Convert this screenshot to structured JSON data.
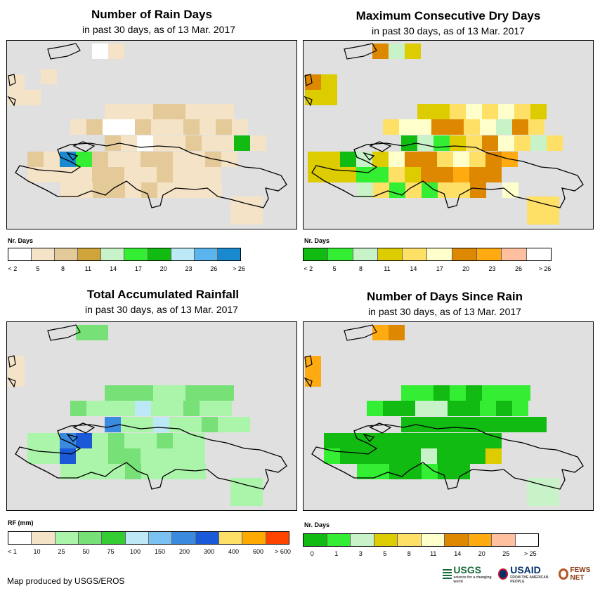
{
  "panels": [
    {
      "id": "rain-days",
      "title": "Number of Rain Days",
      "subtitle": "in past 30 days, as of 13 Mar. 2017",
      "legend_title": "Nr. Days",
      "legend_colors": [
        "#ffffff",
        "#f5e3c8",
        "#e4c999",
        "#cfa43a",
        "#c8f2c8",
        "#33ee33",
        "#11bb11",
        "#bde8f5",
        "#5ab4ee",
        "#1a8ad0"
      ],
      "legend_ticks": [
        "< 2",
        "5",
        "8",
        "11",
        "14",
        "17",
        "20",
        "23",
        "26",
        "> 26"
      ],
      "grid": [
        "...AB......",
        "..B........",
        "B..........",
        "BB.........",
        "...BBBCCBBB",
        "..BCWWCBBCBCB",
        "...CBWBBCBBGB",
        ".CKJFCBBCCBBCB",
        ".BBBBCCBBCBBB",
        "..BBCCBCBBBB",
        "......BB....",
        "......BB...."
      ]
    },
    {
      "id": "dry-days",
      "title": "Maximum Consecutive Dry Days",
      "subtitle": "in past 30 days, as of 13 Mar. 2017",
      "legend_title": "Nr. Days",
      "legend_colors": [
        "#11bb11",
        "#33ee33",
        "#c8f2c8",
        "#ddcc00",
        "#ffe066",
        "#ffffcc",
        "#dd8800",
        "#ffaa11",
        "#ffc0a0",
        "#ffffff"
      ],
      "legend_ticks": [
        "< 2",
        "5",
        "8",
        "11",
        "14",
        "17",
        "20",
        "23",
        "26",
        "> 26"
      ],
      "grid": [
        "..GCD......",
        "...........",
        "GD.........",
        "DD.........",
        "....DDEFEFED",
        "...EFFGGEFCGE",
        "...ACBDEGFECE",
        "DDACDFGGEFEGH",
        "DDDBBEDGGHGG",
        "..CEBEBEEG.F",
        "......EE....",
        "......EE...."
      ]
    },
    {
      "id": "rainfall",
      "title": "Total Accumulated Rainfall",
      "subtitle": "in past 30 days, as of 13 Mar. 2017",
      "legend_title": "RF (mm)",
      "legend_colors": [
        "#ffffff",
        "#f5e3c8",
        "#aaf5aa",
        "#77e077",
        "#33cc33",
        "#bde8f5",
        "#7ac0f0",
        "#3a8ae0",
        "#1a5ad8",
        "#ffe066",
        "#ffaa00",
        "#ff4400"
      ],
      "legend_ticks": [
        "< 1",
        "10",
        "25",
        "50",
        "75",
        "100",
        "150",
        "200",
        "300",
        "400",
        "600",
        "> 600"
      ],
      "grid": [
        "..DD.......",
        "...........",
        "B..........",
        "B..........",
        "...DDDCCDDD",
        "..DCCCFCCDCC",
        "...HCCFCCDCC",
        ".CCHICDCCDCC",
        ".CCICCDDCCCC",
        "..CCCCDCCCC",
        "......CC....",
        "......CC...."
      ]
    },
    {
      "id": "days-since-rain",
      "title": "Number of Days Since Rain",
      "subtitle": "in past 30 days, as of 13 Mar. 2017",
      "legend_title": "Nr. Days",
      "legend_colors": [
        "#11bb11",
        "#33ee33",
        "#c8f2c8",
        "#ddcc00",
        "#ffe066",
        "#ffffcc",
        "#dd8800",
        "#ffaa11",
        "#ffc0a0",
        "#ffffff"
      ],
      "legend_ticks": [
        "0",
        "1",
        "3",
        "5",
        "8",
        "11",
        "14",
        "20",
        "25",
        "> 25"
      ],
      "grid": [
        "..HG.......",
        "...........",
        "H..........",
        "H..........",
        "...BBABABBB",
        "..BAACCAABAB",
        "...AAAAAAAAA",
        ".AAAAAAAAAAA",
        ".BAAAAACAAAD",
        "..BBAABAA...",
        "......CC....",
        "......CC...."
      ]
    }
  ],
  "credit": "Map produced by USGS/EROS",
  "logos": {
    "usgs": "USGS",
    "usgs_tagline": "science for a changing world",
    "usaid": "USAID",
    "usaid_tagline": "FROM THE AMERICAN PEOPLE",
    "fews": "FEWS NET"
  }
}
